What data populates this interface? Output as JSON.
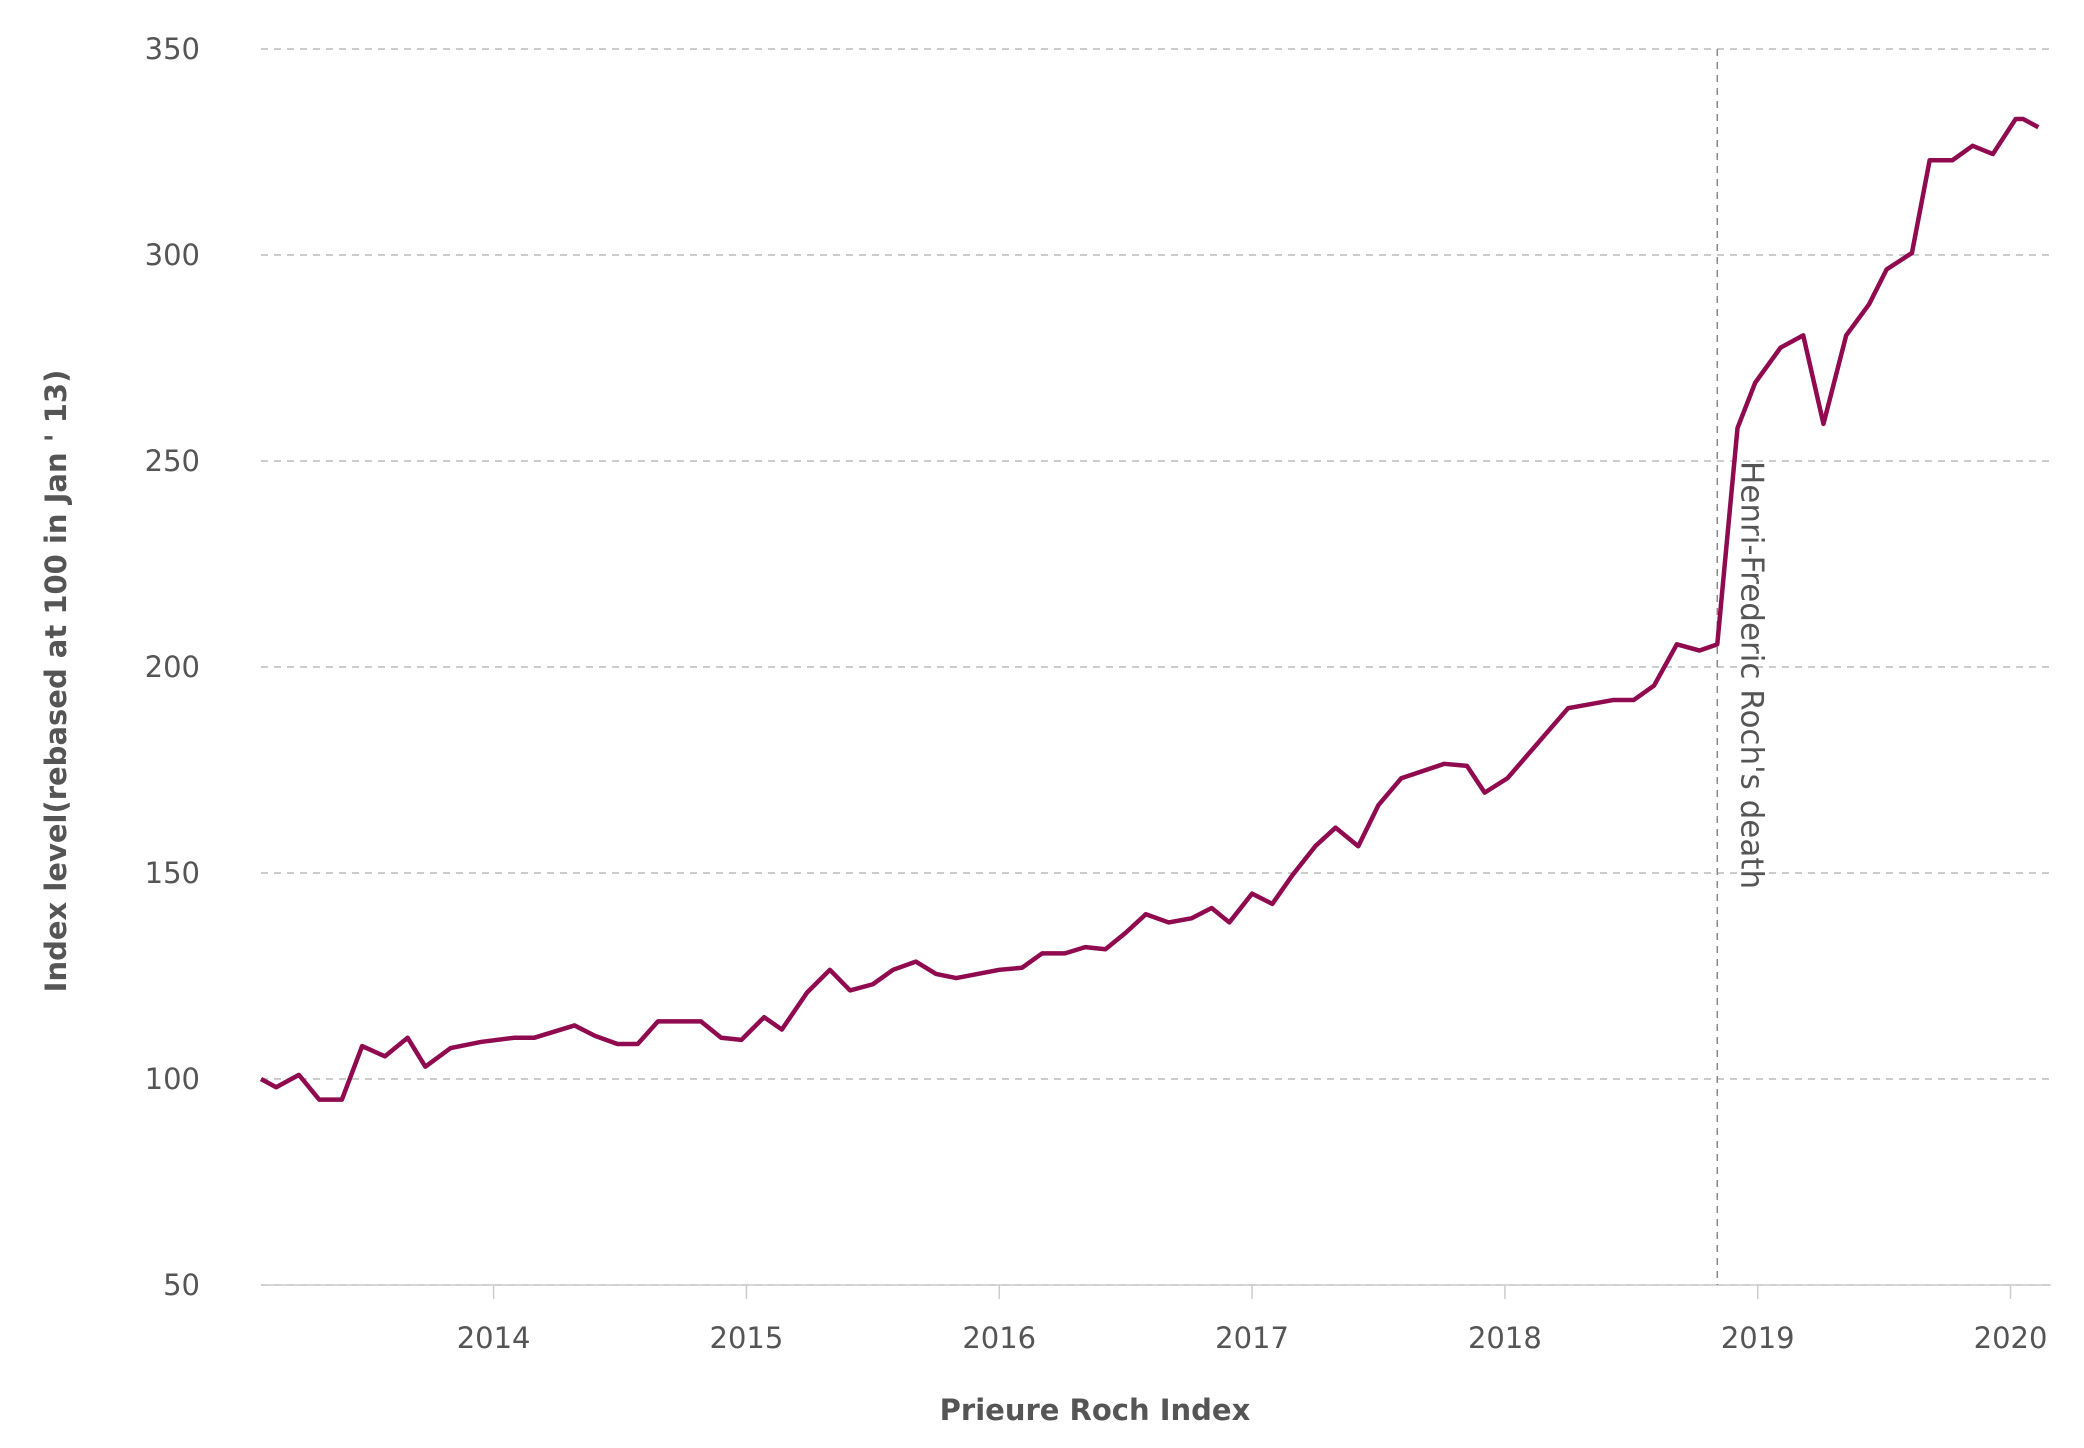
{
  "chart_data": {
    "type": "line",
    "x_label": "Prieure Roch Index",
    "y_label": "Index level(rebased at 100 in Jan ' 13)",
    "xlim": [
      2013.08,
      2020.16
    ],
    "xticks": [
      2014,
      2015,
      2016,
      2017,
      2018,
      2019,
      2020
    ],
    "ylim": [
      50,
      350
    ],
    "yticks": [
      50,
      100,
      150,
      200,
      250,
      300,
      350
    ],
    "grid": true,
    "annotation": {
      "text": "Henri-Frederic Roch's death",
      "x": 2018.84
    },
    "series": [
      {
        "color": "#8f0a4f",
        "x": [
          2013.08,
          2013.14,
          2013.23,
          2013.31,
          2013.4,
          2013.48,
          2013.57,
          2013.66,
          2013.73,
          2013.83,
          2013.95,
          2014.08,
          2014.16,
          2014.32,
          2014.4,
          2014.49,
          2014.57,
          2014.65,
          2014.82,
          2014.9,
          2014.98,
          2015.07,
          2015.14,
          2015.24,
          2015.33,
          2015.41,
          2015.5,
          2015.58,
          2015.67,
          2015.75,
          2015.83,
          2016.0,
          2016.09,
          2016.17,
          2016.26,
          2016.34,
          2016.42,
          2016.5,
          2016.58,
          2016.67,
          2016.76,
          2016.84,
          2016.91,
          2017.0,
          2017.08,
          2017.16,
          2017.25,
          2017.33,
          2017.42,
          2017.5,
          2017.59,
          2017.76,
          2017.85,
          2017.92,
          2018.01,
          2018.25,
          2018.43,
          2018.51,
          2018.59,
          2018.68,
          2018.77,
          2018.84,
          2018.92,
          2018.99,
          2019.09,
          2019.18,
          2019.26,
          2019.35,
          2019.44,
          2019.51,
          2019.61,
          2019.68,
          2019.77,
          2019.85,
          2019.93,
          2020.02,
          2020.05,
          2020.11
        ],
        "values": [
          100,
          98,
          101,
          95,
          95,
          108,
          105.5,
          110,
          103,
          107.5,
          109,
          110,
          110,
          113,
          110.5,
          108.5,
          108.5,
          114,
          114,
          110,
          109.5,
          115,
          112,
          121,
          126.5,
          121.5,
          123,
          126.5,
          128.5,
          125.5,
          124.5,
          126.5,
          127,
          130.5,
          130.5,
          132,
          131.5,
          135.5,
          140,
          138,
          139,
          141.5,
          138,
          145,
          142.5,
          149.5,
          156.5,
          161,
          156.5,
          166.5,
          173,
          176.5,
          176,
          169.5,
          173,
          190,
          192,
          192,
          195.5,
          205.5,
          204,
          205.5,
          258,
          269,
          277.5,
          280.5,
          259,
          280.5,
          288,
          296.5,
          300.5,
          323,
          323,
          326.5,
          324.5,
          333,
          333,
          331
        ]
      }
    ]
  }
}
